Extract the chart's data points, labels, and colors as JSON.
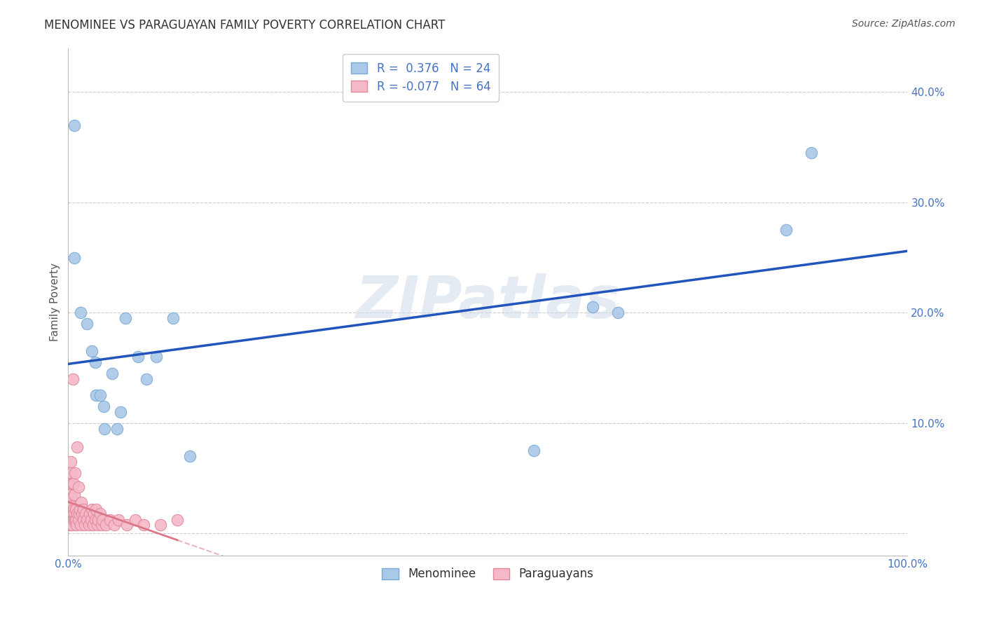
{
  "title": "MENOMINEE VS PARAGUAYAN FAMILY POVERTY CORRELATION CHART",
  "source": "Source: ZipAtlas.com",
  "ylabel": "Family Poverty",
  "xlim": [
    0,
    1.0
  ],
  "ylim": [
    -0.02,
    0.44
  ],
  "xticks": [
    0.0,
    0.1,
    0.2,
    0.3,
    0.4,
    0.5,
    0.6,
    0.7,
    0.8,
    0.9,
    1.0
  ],
  "yticks": [
    0.0,
    0.1,
    0.2,
    0.3,
    0.4
  ],
  "ytick_labels": [
    "",
    "10.0%",
    "20.0%",
    "30.0%",
    "40.0%"
  ],
  "xtick_labels": [
    "0.0%",
    "",
    "",
    "",
    "",
    "",
    "",
    "",
    "",
    "",
    "100.0%"
  ],
  "grid_color": "#c8c8c8",
  "background_color": "#ffffff",
  "watermark": "ZIPatlas",
  "menominee_R": 0.376,
  "menominee_N": 24,
  "paraguayan_R": -0.077,
  "paraguayan_N": 64,
  "menominee_color": "#aac8e8",
  "menominee_edge": "#7aaad4",
  "paraguayan_color": "#f4b8c8",
  "paraguayan_edge": "#e08898",
  "blue_line_color": "#2255bb",
  "pink_line_color": "#dd7788",
  "menominee_x": [
    0.007,
    0.007,
    0.015,
    0.022,
    0.028,
    0.032,
    0.033,
    0.038,
    0.042,
    0.043,
    0.052,
    0.058,
    0.062,
    0.068,
    0.083,
    0.093,
    0.105,
    0.125,
    0.145,
    0.555,
    0.625,
    0.655,
    0.855,
    0.885
  ],
  "menominee_y": [
    0.37,
    0.25,
    0.2,
    0.19,
    0.165,
    0.155,
    0.125,
    0.125,
    0.115,
    0.095,
    0.145,
    0.095,
    0.11,
    0.195,
    0.16,
    0.14,
    0.16,
    0.195,
    0.07,
    0.075,
    0.205,
    0.2,
    0.275,
    0.345
  ],
  "paraguayan_x": [
    0.001,
    0.0012,
    0.0015,
    0.0018,
    0.002,
    0.0022,
    0.0025,
    0.0028,
    0.003,
    0.0032,
    0.0035,
    0.0038,
    0.004,
    0.0042,
    0.0045,
    0.005,
    0.0052,
    0.0055,
    0.006,
    0.0062,
    0.0065,
    0.007,
    0.0072,
    0.008,
    0.0082,
    0.009,
    0.0092,
    0.01,
    0.0102,
    0.0105,
    0.012,
    0.0122,
    0.013,
    0.014,
    0.015,
    0.0152,
    0.016,
    0.018,
    0.0182,
    0.02,
    0.0202,
    0.022,
    0.025,
    0.0252,
    0.027,
    0.028,
    0.03,
    0.0302,
    0.032,
    0.033,
    0.035,
    0.0352,
    0.038,
    0.04,
    0.0402,
    0.045,
    0.05,
    0.055,
    0.06,
    0.07,
    0.08,
    0.09,
    0.11,
    0.13
  ],
  "paraguayan_y": [
    0.015,
    0.025,
    0.035,
    0.045,
    0.008,
    0.018,
    0.028,
    0.065,
    0.012,
    0.022,
    0.032,
    0.055,
    0.018,
    0.025,
    0.045,
    0.008,
    0.018,
    0.14,
    0.012,
    0.022,
    0.045,
    0.018,
    0.035,
    0.012,
    0.055,
    0.012,
    0.022,
    0.008,
    0.018,
    0.078,
    0.012,
    0.042,
    0.018,
    0.022,
    0.008,
    0.028,
    0.018,
    0.012,
    0.022,
    0.008,
    0.018,
    0.012,
    0.008,
    0.018,
    0.012,
    0.022,
    0.008,
    0.018,
    0.012,
    0.022,
    0.008,
    0.012,
    0.018,
    0.008,
    0.012,
    0.008,
    0.012,
    0.008,
    0.012,
    0.008,
    0.012,
    0.008,
    0.008,
    0.012
  ],
  "title_fontsize": 12,
  "axis_label_fontsize": 11,
  "tick_fontsize": 11,
  "legend_fontsize": 12,
  "source_fontsize": 10
}
